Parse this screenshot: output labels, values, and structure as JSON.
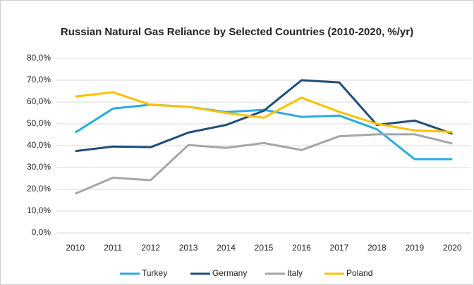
{
  "chart_data": {
    "type": "line",
    "title": "Russian Natural Gas Reliance by Selected Countries (2010-2020, %/yr)",
    "categories": [
      "2010",
      "2011",
      "2012",
      "2013",
      "2014",
      "2015",
      "2016",
      "2017",
      "2018",
      "2019",
      "2020"
    ],
    "series": [
      {
        "name": "Turkey",
        "color": "#29abe2",
        "values": [
          46,
          57,
          58.8,
          57.8,
          55.4,
          56.4,
          53.2,
          53.8,
          47.5,
          33.8,
          33.8
        ]
      },
      {
        "name": "Germany",
        "color": "#1f4e79",
        "values": [
          37.5,
          39.6,
          39.3,
          46,
          49.5,
          56,
          70,
          69,
          49.5,
          51.5,
          45.5
        ]
      },
      {
        "name": "Italy",
        "color": "#a6a6a6",
        "values": [
          18,
          25.3,
          24.2,
          40.3,
          39,
          41.2,
          38,
          44.3,
          45.2,
          45.2,
          41
        ]
      },
      {
        "name": "Poland",
        "color": "#ffc000",
        "values": [
          62.5,
          64.5,
          58.7,
          57.8,
          55,
          52.8,
          62,
          55.5,
          50,
          47,
          46.3
        ]
      }
    ],
    "ylim": [
      0,
      80
    ],
    "yticks": [
      {
        "value": 0,
        "label": "0,0%"
      },
      {
        "value": 10,
        "label": "10,0%"
      },
      {
        "value": 20,
        "label": "20,0%"
      },
      {
        "value": 30,
        "label": "30,0%"
      },
      {
        "value": 40,
        "label": "40,0%"
      },
      {
        "value": 50,
        "label": "50,0%"
      },
      {
        "value": 60,
        "label": "60,0%"
      },
      {
        "value": 70,
        "label": "70,0%"
      },
      {
        "value": 80,
        "label": "80,0%"
      }
    ],
    "grid": true,
    "legend": "bottom"
  }
}
